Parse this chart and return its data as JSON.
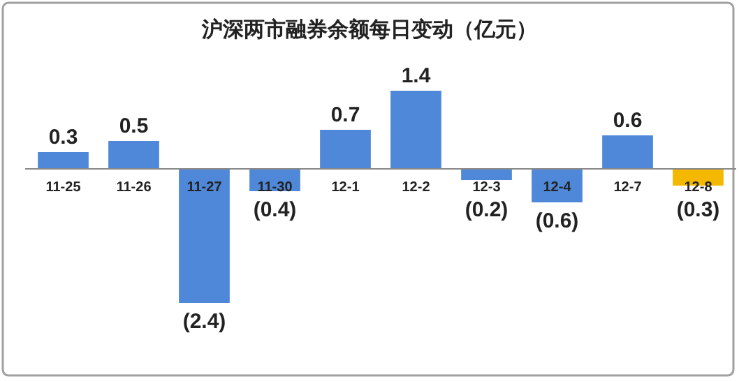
{
  "chart_data": {
    "type": "bar",
    "title": "沪深两市融券余额每日变动（亿元）",
    "categories": [
      "11-25",
      "11-26",
      "11-27",
      "11-30",
      "12-1",
      "12-2",
      "12-3",
      "12-4",
      "12-7",
      "12-8"
    ],
    "values": [
      0.3,
      0.5,
      -2.4,
      -0.4,
      0.7,
      1.4,
      -0.2,
      -0.6,
      0.6,
      -0.3
    ],
    "colors": [
      "#4f88d8",
      "#4f88d8",
      "#4f88d8",
      "#4f88d8",
      "#4f88d8",
      "#4f88d8",
      "#4f88d8",
      "#4f88d8",
      "#4f88d8",
      "#f5b800"
    ],
    "value_labels": [
      "0.3",
      "0.5",
      "(2.4)",
      "(0.4)",
      "0.7",
      "1.4",
      "(0.2)",
      "(0.6)",
      "0.6",
      "(0.3)"
    ]
  }
}
